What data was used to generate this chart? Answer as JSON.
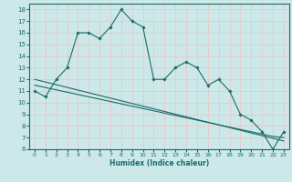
{
  "xlabel": "Humidex (Indice chaleur)",
  "bg_color": "#cce8e8",
  "grid_color": "#e8c8c8",
  "line_color": "#1a6b6b",
  "x_data": [
    0,
    1,
    2,
    3,
    4,
    5,
    6,
    7,
    8,
    9,
    10,
    11,
    12,
    13,
    14,
    15,
    16,
    17,
    18,
    19,
    20,
    21,
    22,
    23
  ],
  "y_main": [
    11,
    10.5,
    12,
    13,
    16,
    16,
    15.5,
    16.5,
    18,
    17,
    16.5,
    12,
    12,
    13,
    13.5,
    13,
    11.5,
    12,
    11,
    9,
    8.5,
    7.5,
    6,
    7.5
  ],
  "y_trend1": [
    11.5,
    11.3,
    11.1,
    10.9,
    10.7,
    10.5,
    10.3,
    10.1,
    9.9,
    9.7,
    9.5,
    9.3,
    9.1,
    8.9,
    8.7,
    8.5,
    8.3,
    8.1,
    7.9,
    7.7,
    7.5,
    7.3,
    7.1,
    7.0
  ],
  "y_trend2": [
    12.0,
    11.77,
    11.54,
    11.31,
    11.08,
    10.85,
    10.62,
    10.39,
    10.16,
    9.93,
    9.7,
    9.47,
    9.24,
    9.01,
    8.78,
    8.55,
    8.32,
    8.09,
    7.86,
    7.63,
    7.4,
    7.17,
    6.94,
    6.71
  ],
  "xlim": [
    -0.5,
    23.5
  ],
  "ylim": [
    6,
    18.5
  ],
  "yticks": [
    6,
    7,
    8,
    9,
    10,
    11,
    12,
    13,
    14,
    15,
    16,
    17,
    18
  ],
  "xticks": [
    0,
    1,
    2,
    3,
    4,
    5,
    6,
    7,
    8,
    9,
    10,
    11,
    12,
    13,
    14,
    15,
    16,
    17,
    18,
    19,
    20,
    21,
    22,
    23
  ]
}
